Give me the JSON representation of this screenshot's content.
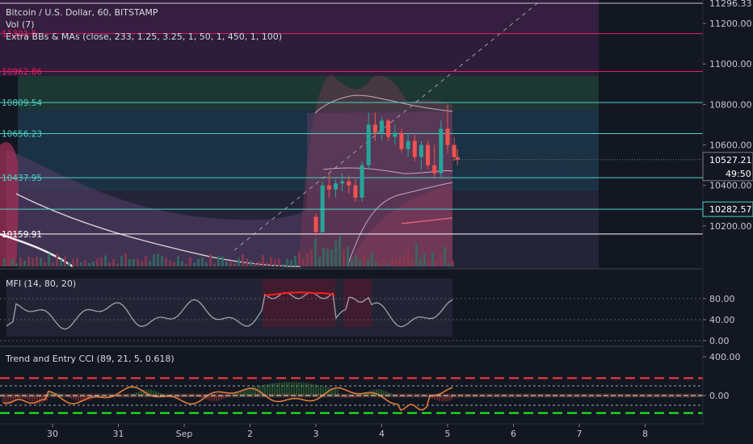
{
  "chart_data": {
    "type": "candlestick",
    "symbol": "Bitcoin / U.S. Dollar, 60, BITSTAMP",
    "indicators": {
      "volume": "Vol (7)",
      "bbands": "Extra BBs & MAs (close, 233, 1.25, 3.25, 1, 50, 1, 450, 1, 100)",
      "mfi": "MFI (14, 80, 20)",
      "cci": "Trend and Entry CCI (89, 21, 5, 0.618)"
    },
    "x_tick_labels": [
      "30",
      "31",
      "Sep",
      "2",
      "3",
      "4",
      "5",
      "6",
      "7",
      "8"
    ],
    "x_tick_days": [
      30,
      31,
      32,
      33,
      34,
      35,
      36,
      37,
      38,
      39
    ],
    "price_axis": {
      "ylim": [
        10000,
        11300
      ],
      "tick_values": [
        11200,
        11000,
        10800,
        10600,
        10400,
        10200
      ],
      "tick_labels": [
        "11200.00",
        "11000.00",
        "10800.00",
        "10600.00",
        "10400.00",
        "10200.00"
      ],
      "top_label": "11296.33",
      "last_price": "10527.21",
      "last_price_value": 10527.21,
      "countdown": "49:50",
      "level_badge": "10282.57",
      "level_badge_value": 10282.57
    },
    "fib_levels": [
      {
        "label": "11321.5",
        "value": 11150,
        "color": "#e91e63"
      },
      {
        "label": "10962.86",
        "value": 10962.86,
        "color": "#e91e63"
      },
      {
        "label": "10809.54",
        "value": 10809.54,
        "color": "#4dd0c4"
      },
      {
        "label": "10656.23",
        "value": 10656.23,
        "color": "#4dd0c4"
      },
      {
        "label": "10437.95",
        "value": 10437.95,
        "color": "#4dd0c4"
      },
      {
        "label": "10159.91",
        "value": 10159.91,
        "color": "#ffffff"
      }
    ],
    "mfi_axis": {
      "ylim": [
        0,
        100
      ],
      "tick_values": [
        80,
        40,
        0
      ],
      "tick_labels": [
        "80.00",
        "40.00",
        "0.00"
      ]
    },
    "cci_axis": {
      "ylim": [
        -250,
        450
      ],
      "tick_values": [
        400,
        0
      ],
      "tick_labels": [
        "400.00",
        "0.00"
      ]
    },
    "candles": [
      {
        "d": 34.0,
        "o": 10245,
        "h": 10260,
        "l": 10150,
        "c": 10170
      },
      {
        "d": 34.1,
        "o": 10170,
        "h": 10420,
        "l": 10160,
        "c": 10400
      },
      {
        "d": 34.2,
        "o": 10400,
        "h": 10460,
        "l": 10340,
        "c": 10380
      },
      {
        "d": 34.3,
        "o": 10380,
        "h": 10430,
        "l": 10340,
        "c": 10410
      },
      {
        "d": 34.4,
        "o": 10410,
        "h": 10460,
        "l": 10370,
        "c": 10420
      },
      {
        "d": 34.5,
        "o": 10420,
        "h": 10450,
        "l": 10360,
        "c": 10400
      },
      {
        "d": 34.6,
        "o": 10400,
        "h": 10440,
        "l": 10320,
        "c": 10340
      },
      {
        "d": 34.7,
        "o": 10340,
        "h": 10520,
        "l": 10320,
        "c": 10500
      },
      {
        "d": 34.8,
        "o": 10500,
        "h": 10760,
        "l": 10480,
        "c": 10700
      },
      {
        "d": 34.9,
        "o": 10700,
        "h": 10760,
        "l": 10620,
        "c": 10660
      },
      {
        "d": 35.0,
        "o": 10660,
        "h": 10740,
        "l": 10620,
        "c": 10720
      },
      {
        "d": 35.1,
        "o": 10720,
        "h": 10730,
        "l": 10620,
        "c": 10640
      },
      {
        "d": 35.2,
        "o": 10640,
        "h": 10700,
        "l": 10600,
        "c": 10660
      },
      {
        "d": 35.3,
        "o": 10660,
        "h": 10680,
        "l": 10560,
        "c": 10580
      },
      {
        "d": 35.4,
        "o": 10580,
        "h": 10660,
        "l": 10540,
        "c": 10620
      },
      {
        "d": 35.5,
        "o": 10620,
        "h": 10650,
        "l": 10520,
        "c": 10540
      },
      {
        "d": 35.6,
        "o": 10540,
        "h": 10620,
        "l": 10480,
        "c": 10600
      },
      {
        "d": 35.7,
        "o": 10600,
        "h": 10620,
        "l": 10480,
        "c": 10500
      },
      {
        "d": 35.8,
        "o": 10500,
        "h": 10600,
        "l": 10440,
        "c": 10460
      },
      {
        "d": 35.9,
        "o": 10460,
        "h": 10720,
        "l": 10440,
        "c": 10680
      },
      {
        "d": 36.0,
        "o": 10680,
        "h": 10800,
        "l": 10560,
        "c": 10600
      },
      {
        "d": 36.1,
        "o": 10600,
        "h": 10640,
        "l": 10520,
        "c": 10540
      },
      {
        "d": 36.15,
        "o": 10540,
        "h": 10580,
        "l": 10500,
        "c": 10527
      }
    ]
  }
}
